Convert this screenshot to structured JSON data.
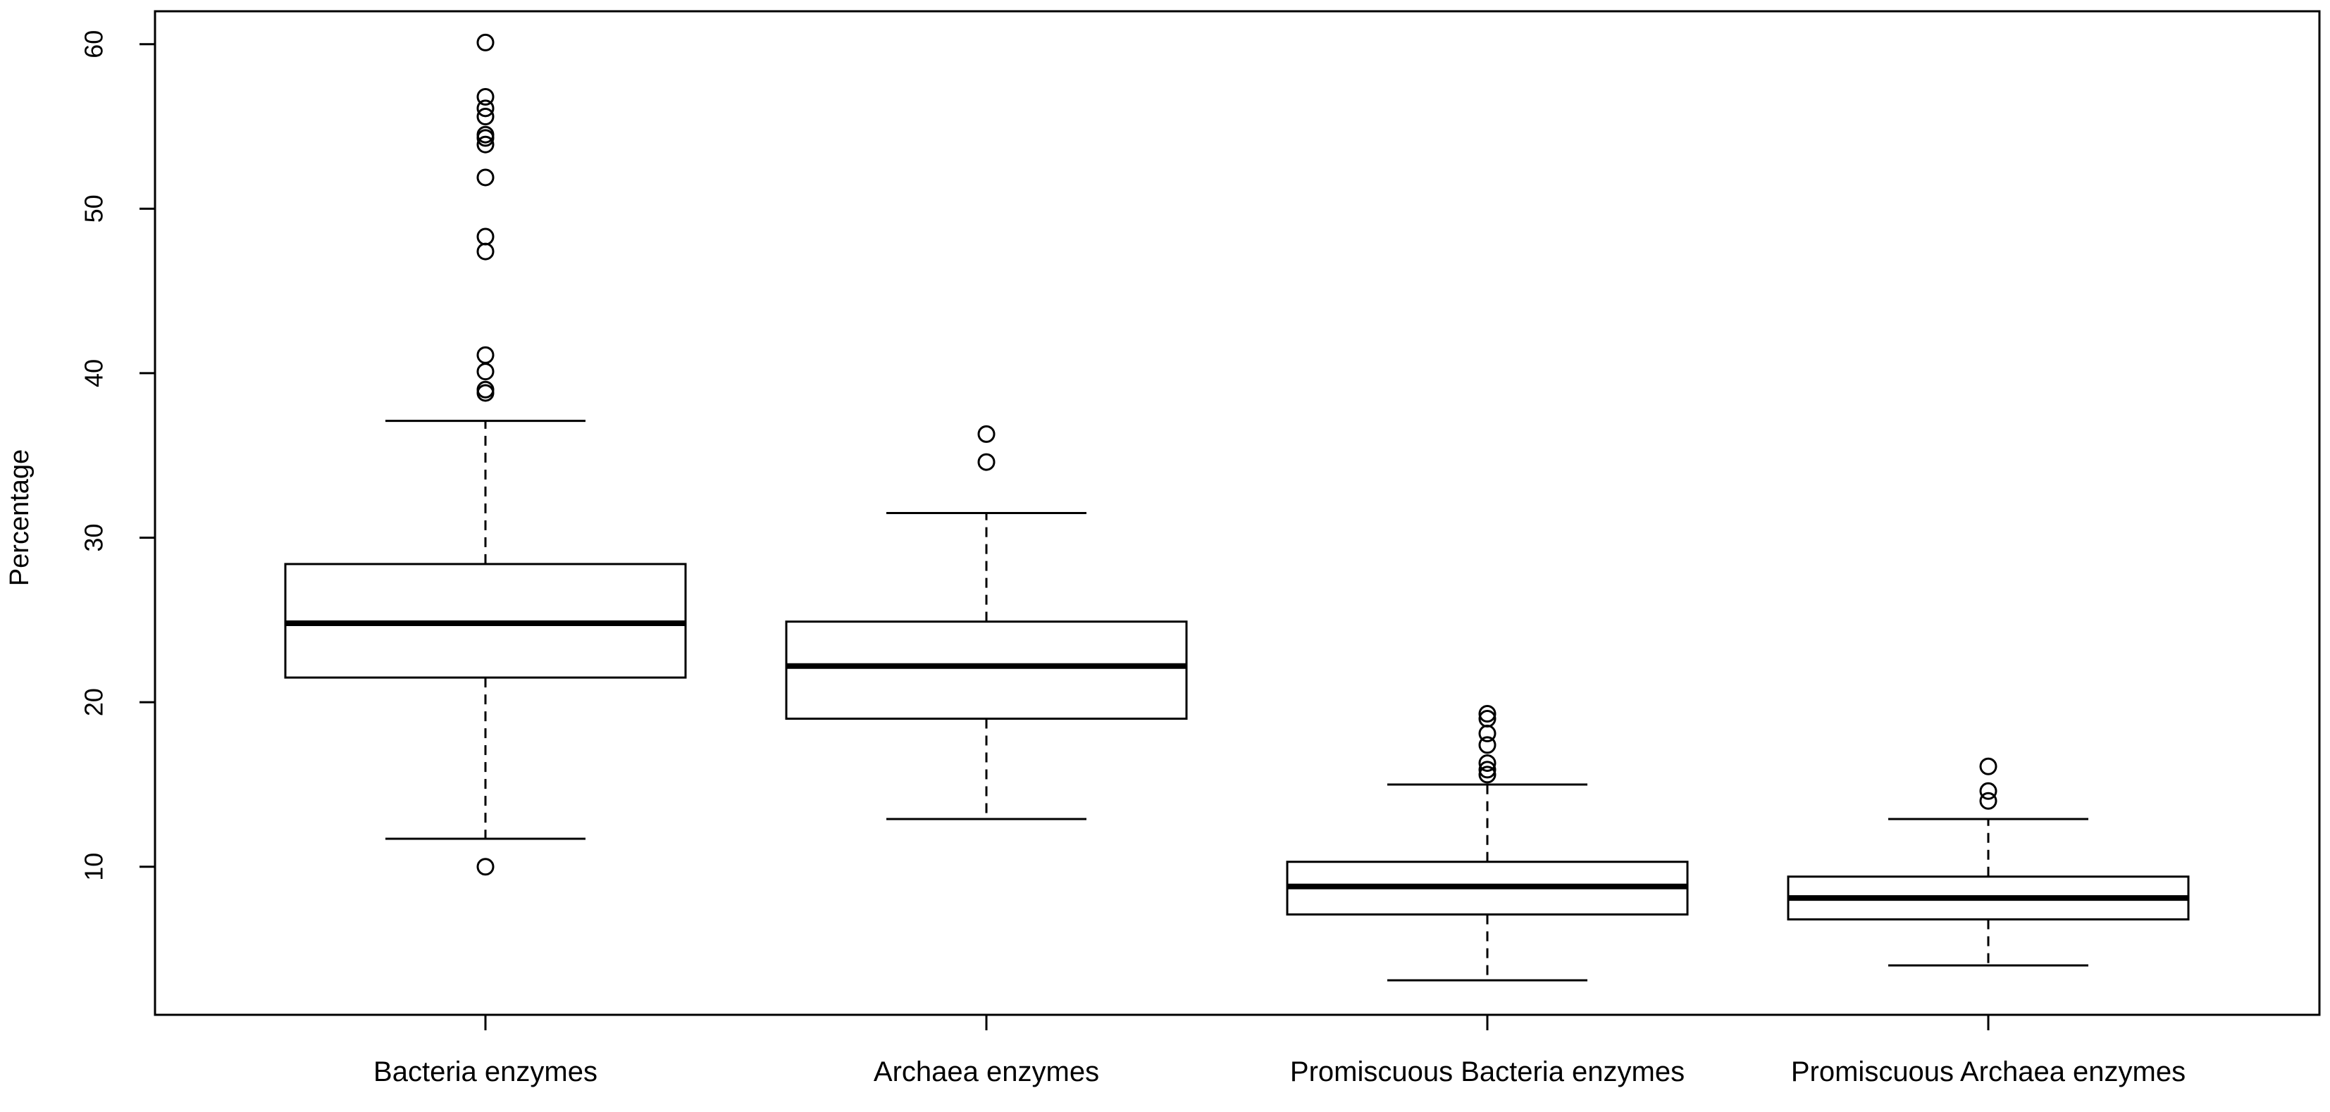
{
  "chart_data": {
    "type": "boxplot",
    "ylabel": "Percentage",
    "xlabel": "",
    "ylim": [
      1,
      62
    ],
    "yticks": [
      10,
      20,
      30,
      40,
      50,
      60
    ],
    "grid": false,
    "categories": [
      "Bacteria enzymes",
      "Archaea enzymes",
      "Promiscuous Bacteria enzymes",
      "Promiscuous Archaea enzymes"
    ],
    "boxes": [
      {
        "lower_whisker": 11.7,
        "q1": 21.5,
        "median": 24.8,
        "q3": 28.4,
        "upper_whisker": 37.1,
        "outliers": [
          10.0,
          38.8,
          39.0,
          40.1,
          41.1,
          47.4,
          48.3,
          51.9,
          53.9,
          54.3,
          54.5,
          55.6,
          56.1,
          56.8,
          60.1
        ]
      },
      {
        "lower_whisker": 12.9,
        "q1": 19.0,
        "median": 22.2,
        "q3": 24.9,
        "upper_whisker": 31.5,
        "outliers": [
          34.6,
          36.3
        ]
      },
      {
        "lower_whisker": 3.1,
        "q1": 7.1,
        "median": 8.8,
        "q3": 10.3,
        "upper_whisker": 15.0,
        "outliers": [
          15.6,
          15.9,
          16.3,
          17.4,
          18.1,
          19.0,
          19.3
        ]
      },
      {
        "lower_whisker": 4.0,
        "q1": 6.8,
        "median": 8.1,
        "q3": 9.4,
        "upper_whisker": 12.9,
        "outliers": [
          14.0,
          14.6,
          16.1
        ]
      }
    ]
  }
}
